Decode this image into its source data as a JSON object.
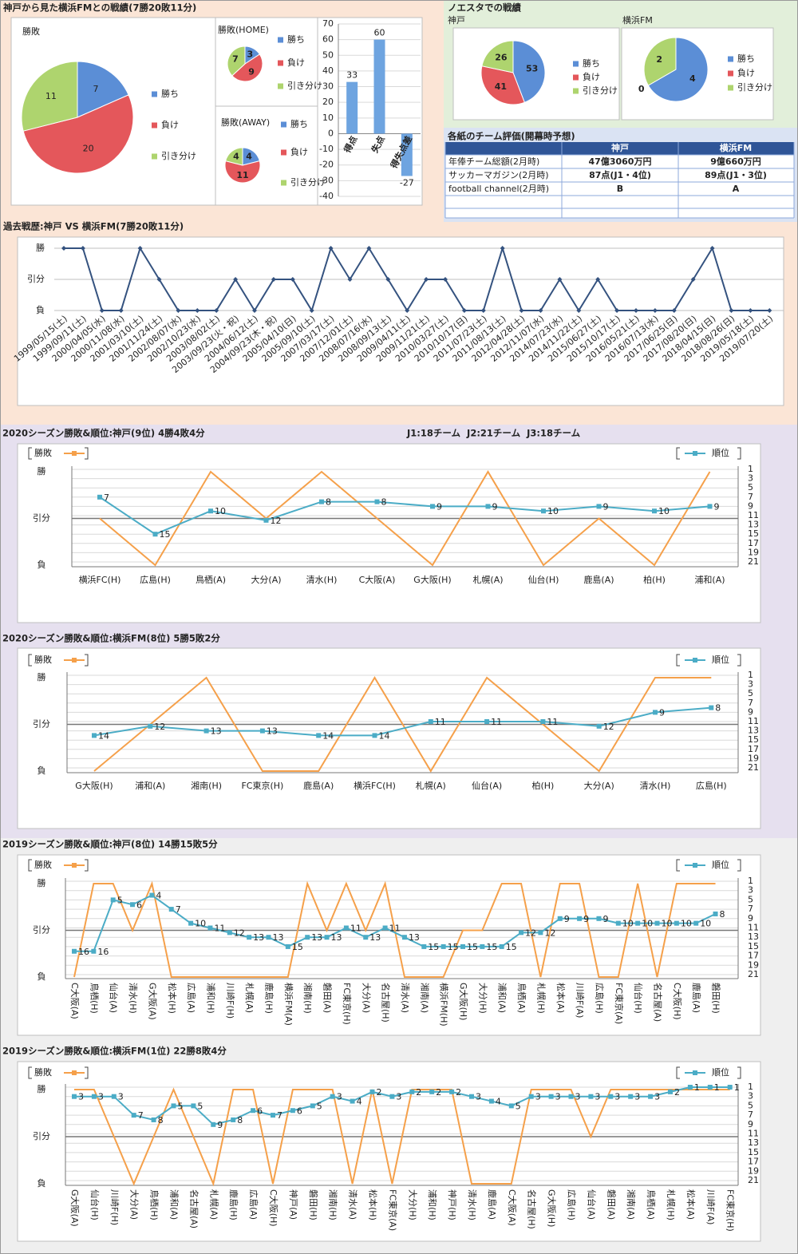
{
  "headings": {
    "head_to_head": "神戸から見た横浜FMとの戦績(7勝20敗11分)",
    "noesta": "ノエスタでの戦績"
  },
  "table": {
    "title": "各紙のチーム評価(開幕時予想)",
    "columns": [
      "神戸",
      "横浜FM"
    ],
    "rows": [
      {
        "label": "年俸チーム総額(2月時)",
        "cells": [
          "47億3060万円",
          "9億660万円"
        ]
      },
      {
        "label": "サッカーマガジン(2月時)",
        "cells": [
          "87点(J1・4位)",
          "89点(J1・3位)"
        ]
      },
      {
        "label": "football channel(2月時)",
        "cells": [
          "B",
          "A"
        ]
      }
    ]
  },
  "chart_data": [
    {
      "type": "pie",
      "title": "勝敗",
      "categories": [
        "勝ち",
        "負け",
        "引き分け"
      ],
      "values": [
        7,
        20,
        11
      ],
      "colors": [
        "#5b8ed6",
        "#e4575b",
        "#aed46e"
      ],
      "legend": "right"
    },
    {
      "type": "pie",
      "title": "勝敗(HOME)",
      "categories": [
        "勝ち",
        "負け",
        "引き分け"
      ],
      "values": [
        3,
        9,
        7
      ],
      "colors": [
        "#5b8ed6",
        "#e4575b",
        "#aed46e"
      ],
      "legend": "right"
    },
    {
      "type": "pie",
      "title": "勝敗(AWAY)",
      "categories": [
        "勝ち",
        "負け",
        "引き分け"
      ],
      "values": [
        4,
        11,
        4
      ],
      "colors": [
        "#5b8ed6",
        "#e4575b",
        "#aed46e"
      ],
      "legend": "right"
    },
    {
      "type": "bar",
      "categories": [
        "得点",
        "失点",
        "得失点差"
      ],
      "values": [
        33,
        60,
        -27
      ],
      "color": "#6ea4e0",
      "ylim": [
        -40,
        70
      ],
      "yticks": [
        -40,
        -30,
        -20,
        -10,
        0,
        10,
        20,
        30,
        40,
        50,
        60,
        70
      ],
      "grid": true
    },
    {
      "type": "pie",
      "title": "神戸",
      "categories": [
        "勝ち",
        "負け",
        "引き分け"
      ],
      "values": [
        53,
        41,
        26
      ],
      "colors": [
        "#5b8ed6",
        "#e4575b",
        "#aed46e"
      ],
      "legend": "right"
    },
    {
      "type": "pie",
      "title": "横浜FM",
      "categories": [
        "勝ち",
        "負け",
        "引き分け"
      ],
      "values": [
        4,
        0,
        2
      ],
      "colors": [
        "#5b8ed6",
        "#e4575b",
        "#aed46e"
      ],
      "legend": "right"
    },
    {
      "type": "line",
      "title": "過去戦歴:神戸 VS 横浜FM(7勝20敗11分)",
      "y_categories": [
        "勝",
        "引分",
        "負"
      ],
      "color": "#34527f",
      "grid": true,
      "categories": [
        "1999/05/15(土)",
        "1999/09/11(土)",
        "2000/04/05(水)",
        "2000/11/08(水)",
        "2001/03/10(土)",
        "2001/11/24(土)",
        "2002/08/07(水)",
        "2002/10/23(水)",
        "2003/08/02(土)",
        "2003/09/23(火・祝)",
        "2004/06/12(土)",
        "2004/09/23(木・祝)",
        "2005/04/10(日)",
        "2005/09/10(土)",
        "2007/03/17(土)",
        "2007/12/01(土)",
        "2008/07/16(水)",
        "2008/09/13(土)",
        "2009/04/11(土)",
        "2009/11/21(土)",
        "2010/03/27(土)",
        "2010/10/17(日)",
        "2011/07/23(土)",
        "2011/08/13(土)",
        "2012/04/28(土)",
        "2012/11/07(水)",
        "2014/07/23(水)",
        "2014/11/22(土)",
        "2015/06/27(土)",
        "2015/10/17(土)",
        "2016/05/21(土)",
        "2016/07/13(水)",
        "2017/06/25(日)",
        "2017/08/20(日)",
        "2018/04/15(日)",
        "2018/08/26(日)",
        "2019/05/18(土)",
        "2019/07/20(土)"
      ],
      "values": [
        "勝",
        "勝",
        "負",
        "負",
        "勝",
        "引分",
        "負",
        "負",
        "負",
        "引分",
        "負",
        "引分",
        "引分",
        "負",
        "勝",
        "引分",
        "勝",
        "引分",
        "負",
        "引分",
        "引分",
        "負",
        "負",
        "勝",
        "負",
        "負",
        "引分",
        "負",
        "引分",
        "負",
        "負",
        "負",
        "負",
        "引分",
        "勝",
        "負",
        "負",
        "負"
      ]
    },
    {
      "type": "combo",
      "title": "2020シーズン勝敗&順位:神戸(9位) 4勝4敗4分",
      "note": "J1:18チーム  J2:21チーム  J3:18チーム",
      "y_categories": [
        "勝",
        "引分",
        "負"
      ],
      "y2lim": [
        21,
        1
      ],
      "y2ticks": [
        1,
        3,
        5,
        7,
        9,
        11,
        13,
        15,
        17,
        19,
        21
      ],
      "grid": true,
      "categories": [
        "横浜FC(H)",
        "広島(H)",
        "鳥栖(A)",
        "大分(A)",
        "清水(H)",
        "C大阪(A)",
        "G大阪(H)",
        "札幌(A)",
        "仙台(H)",
        "鹿島(A)",
        "柏(H)",
        "浦和(A)"
      ],
      "series": [
        {
          "name": "勝敗",
          "color": "#f5a04a",
          "values": [
            "引分",
            "負",
            "勝",
            "引分",
            "勝",
            "引分",
            "負",
            "勝",
            "負",
            "引分",
            "負",
            "勝"
          ]
        },
        {
          "name": "順位",
          "color": "#4bacc6",
          "axis": "y2",
          "values": [
            7,
            15,
            10,
            12,
            8,
            8,
            9,
            9,
            10,
            9,
            10,
            9
          ]
        }
      ]
    },
    {
      "type": "combo",
      "title": "2020シーズン勝敗&順位:横浜FM(8位) 5勝5敗2分",
      "y_categories": [
        "勝",
        "引分",
        "負"
      ],
      "y2lim": [
        21,
        1
      ],
      "y2ticks": [
        1,
        3,
        5,
        7,
        9,
        11,
        13,
        15,
        17,
        19,
        21
      ],
      "grid": true,
      "categories": [
        "G大阪(H)",
        "浦和(A)",
        "湘南(H)",
        "FC東京(H)",
        "鹿島(A)",
        "横浜FC(H)",
        "札幌(A)",
        "仙台(A)",
        "柏(H)",
        "大分(A)",
        "清水(H)",
        "広島(H)"
      ],
      "series": [
        {
          "name": "勝敗",
          "color": "#f5a04a",
          "values": [
            "負",
            "引分",
            "勝",
            "負",
            "負",
            "勝",
            "負",
            "勝",
            "引分",
            "負",
            "勝",
            "勝"
          ]
        },
        {
          "name": "順位",
          "color": "#4bacc6",
          "axis": "y2",
          "values": [
            14,
            12,
            13,
            13,
            14,
            14,
            11,
            11,
            11,
            12,
            9,
            8
          ]
        }
      ]
    },
    {
      "type": "combo",
      "title": "2019シーズン勝敗&順位:神戸(8位) 14勝15敗5分",
      "y_categories": [
        "勝",
        "引分",
        "負"
      ],
      "y2lim": [
        21,
        1
      ],
      "y2ticks": [
        1,
        3,
        5,
        7,
        9,
        11,
        13,
        15,
        17,
        19,
        21
      ],
      "grid": true,
      "categories": [
        "C大阪(A)",
        "鳥栖(H)",
        "仙台(A)",
        "清水(H)",
        "G大阪(A)",
        "松本(H)",
        "広島(A)",
        "浦和(H)",
        "川崎F(H)",
        "札幌(A)",
        "鹿島(H)",
        "横浜FM(A)",
        "湘南(H)",
        "磐田(A)",
        "FC東京(H)",
        "大分(A)",
        "名古屋(H)",
        "清水(A)",
        "湘南(A)",
        "横浜FM(H)",
        "G大阪(H)",
        "大分(H)",
        "浦和(A)",
        "鳥栖(A)",
        "札幌(H)",
        "松本(A)",
        "川崎F(A)",
        "広島(H)",
        "FC東京(A)",
        "仙台(H)",
        "名古屋(A)",
        "C大阪(H)",
        "鹿島(A)",
        "磐田(H)"
      ],
      "series": [
        {
          "name": "勝敗",
          "color": "#f5a04a",
          "values": [
            "負",
            "勝",
            "勝",
            "引分",
            "勝",
            "負",
            "負",
            "負",
            "負",
            "負",
            "負",
            "負",
            "勝",
            "引分",
            "勝",
            "引分",
            "勝",
            "負",
            "負",
            "負",
            "引分",
            "引分",
            "勝",
            "勝",
            "負",
            "勝",
            "勝",
            "負",
            "負",
            "勝",
            "負",
            "勝",
            "勝",
            "勝"
          ]
        },
        {
          "name": "順位",
          "color": "#4bacc6",
          "axis": "y2",
          "values": [
            16,
            16,
            5,
            6,
            4,
            7,
            10,
            11,
            12,
            13,
            13,
            15,
            13,
            13,
            11,
            13,
            11,
            13,
            15,
            15,
            15,
            15,
            15,
            12,
            12,
            9,
            9,
            9,
            10,
            10,
            10,
            10,
            10,
            8
          ]
        }
      ]
    },
    {
      "type": "combo",
      "title": "2019シーズン勝敗&順位:横浜FM(1位) 22勝8敗4分",
      "y_categories": [
        "勝",
        "引分",
        "負"
      ],
      "y2lim": [
        21,
        1
      ],
      "y2ticks": [
        1,
        3,
        5,
        7,
        9,
        11,
        13,
        15,
        17,
        19,
        21
      ],
      "grid": true,
      "categories": [
        "G大阪(A)",
        "仙台(H)",
        "川崎F(H)",
        "大分(A)",
        "鳥栖(H)",
        "浦和(A)",
        "名古屋(A)",
        "札幌(A)",
        "鹿島(H)",
        "広島(A)",
        "C大阪(H)",
        "神戸(A)",
        "磐田(H)",
        "湘南(H)",
        "清水(A)",
        "松本(H)",
        "FC東京(A)",
        "大分(H)",
        "浦和(H)",
        "神戸(H)",
        "清水(H)",
        "鹿島(A)",
        "C大阪(A)",
        "名古屋(H)",
        "G大阪(H)",
        "広島(H)",
        "仙台(A)",
        "磐田(A)",
        "湘南(A)",
        "鳥栖(A)",
        "札幌(H)",
        "松本(A)",
        "川崎F(A)",
        "FC東京(H)"
      ],
      "series": [
        {
          "name": "勝敗",
          "color": "#f5a04a",
          "values": [
            "勝",
            "勝",
            "引分",
            "負",
            "引分",
            "勝",
            "引分",
            "負",
            "勝",
            "勝",
            "負",
            "勝",
            "勝",
            "勝",
            "負",
            "勝",
            "負",
            "勝",
            "勝",
            "勝",
            "負",
            "負",
            "負",
            "勝",
            "勝",
            "勝",
            "引分",
            "勝",
            "勝",
            "勝",
            "勝",
            "勝",
            "勝",
            "勝"
          ]
        },
        {
          "name": "順位",
          "color": "#4bacc6",
          "axis": "y2",
          "values": [
            3,
            3,
            3,
            7,
            8,
            5,
            5,
            9,
            8,
            6,
            7,
            6,
            5,
            3,
            4,
            2,
            3,
            2,
            2,
            2,
            3,
            4,
            5,
            3,
            3,
            3,
            3,
            3,
            3,
            3,
            2,
            1,
            1,
            1
          ]
        }
      ]
    }
  ]
}
